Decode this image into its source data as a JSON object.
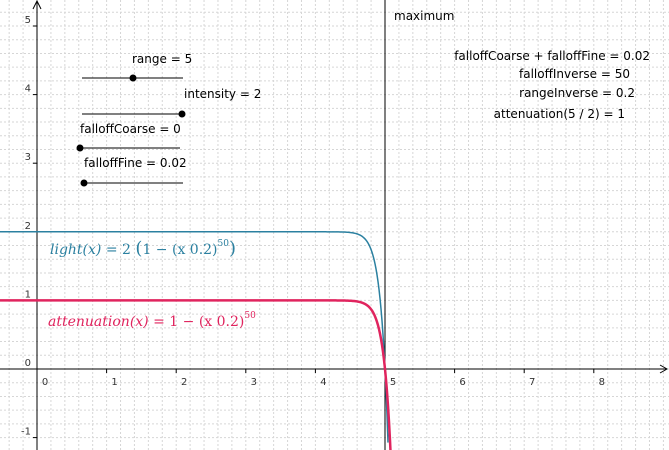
{
  "view": {
    "xticks": [
      0,
      1,
      2,
      3,
      4,
      5,
      6,
      7,
      8
    ],
    "yticks": [
      -1,
      0,
      1,
      2,
      3,
      4,
      5
    ]
  },
  "sliders": [
    {
      "label": "range = 5"
    },
    {
      "label": "intensity = 2"
    },
    {
      "label": "falloffCoarse = 0"
    },
    {
      "label": "falloffFine = 0.02"
    }
  ],
  "results": [
    "falloffCoarse + falloffFine =  0.02",
    "falloffInverse = 50",
    "rangeInverse = 0.2",
    "attenuation(5 / 2) = 1"
  ],
  "marker": {
    "x": 5,
    "label": "maximum"
  },
  "curves": [
    {
      "name": "light(x)",
      "eq": "=",
      "coef": "2",
      "body": "1 − (x 0.2)",
      "exp": "50",
      "color": "#2b80a0",
      "scale": 2,
      "base": 0.2,
      "exponent": 50
    },
    {
      "name": "attenuation(x)",
      "eq": "=",
      "body": "1 − (x 0.2)",
      "exp": "50",
      "color": "#e0245e",
      "scale": 1,
      "base": 0.2,
      "exponent": 50
    }
  ]
}
